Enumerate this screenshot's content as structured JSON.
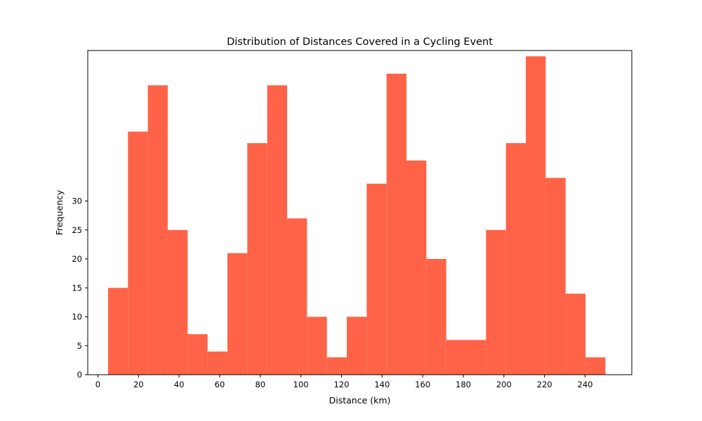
{
  "chart_data": {
    "type": "bar",
    "title": "Distribution of Distances Covered in a Cycling Event",
    "xlabel": "Distance (km)",
    "ylabel": "Frequency",
    "bar_color": "#FF6347",
    "xlim": [
      -5,
      263
    ],
    "ylim": [
      0,
      56
    ],
    "xticks": [
      0,
      20,
      40,
      60,
      80,
      100,
      120,
      140,
      160,
      180,
      200,
      220,
      240
    ],
    "yticks": [
      0,
      5,
      10,
      15,
      20,
      25,
      30
    ],
    "grid": false,
    "bins": [
      {
        "x0": 5.0,
        "x1": 14.8,
        "count": 15
      },
      {
        "x0": 14.8,
        "x1": 24.6,
        "count": 42
      },
      {
        "x0": 24.6,
        "x1": 34.4,
        "count": 50
      },
      {
        "x0": 34.4,
        "x1": 44.2,
        "count": 25
      },
      {
        "x0": 44.2,
        "x1": 54.0,
        "count": 7
      },
      {
        "x0": 54.0,
        "x1": 63.8,
        "count": 4
      },
      {
        "x0": 63.8,
        "x1": 73.6,
        "count": 21
      },
      {
        "x0": 73.6,
        "x1": 83.4,
        "count": 40
      },
      {
        "x0": 83.4,
        "x1": 93.2,
        "count": 50
      },
      {
        "x0": 93.2,
        "x1": 103.0,
        "count": 27
      },
      {
        "x0": 103.0,
        "x1": 112.8,
        "count": 10
      },
      {
        "x0": 112.8,
        "x1": 122.6,
        "count": 3
      },
      {
        "x0": 122.6,
        "x1": 132.4,
        "count": 10
      },
      {
        "x0": 132.4,
        "x1": 142.2,
        "count": 33
      },
      {
        "x0": 142.2,
        "x1": 152.0,
        "count": 52
      },
      {
        "x0": 152.0,
        "x1": 161.8,
        "count": 37
      },
      {
        "x0": 161.8,
        "x1": 171.6,
        "count": 20
      },
      {
        "x0": 171.6,
        "x1": 181.4,
        "count": 6
      },
      {
        "x0": 181.4,
        "x1": 191.2,
        "count": 6
      },
      {
        "x0": 191.2,
        "x1": 201.0,
        "count": 25
      },
      {
        "x0": 201.0,
        "x1": 210.8,
        "count": 40
      },
      {
        "x0": 210.8,
        "x1": 220.6,
        "count": 55
      },
      {
        "x0": 220.6,
        "x1": 230.4,
        "count": 34
      },
      {
        "x0": 230.4,
        "x1": 240.2,
        "count": 14
      },
      {
        "x0": 240.2,
        "x1": 250.0,
        "count": 3
      }
    ]
  }
}
